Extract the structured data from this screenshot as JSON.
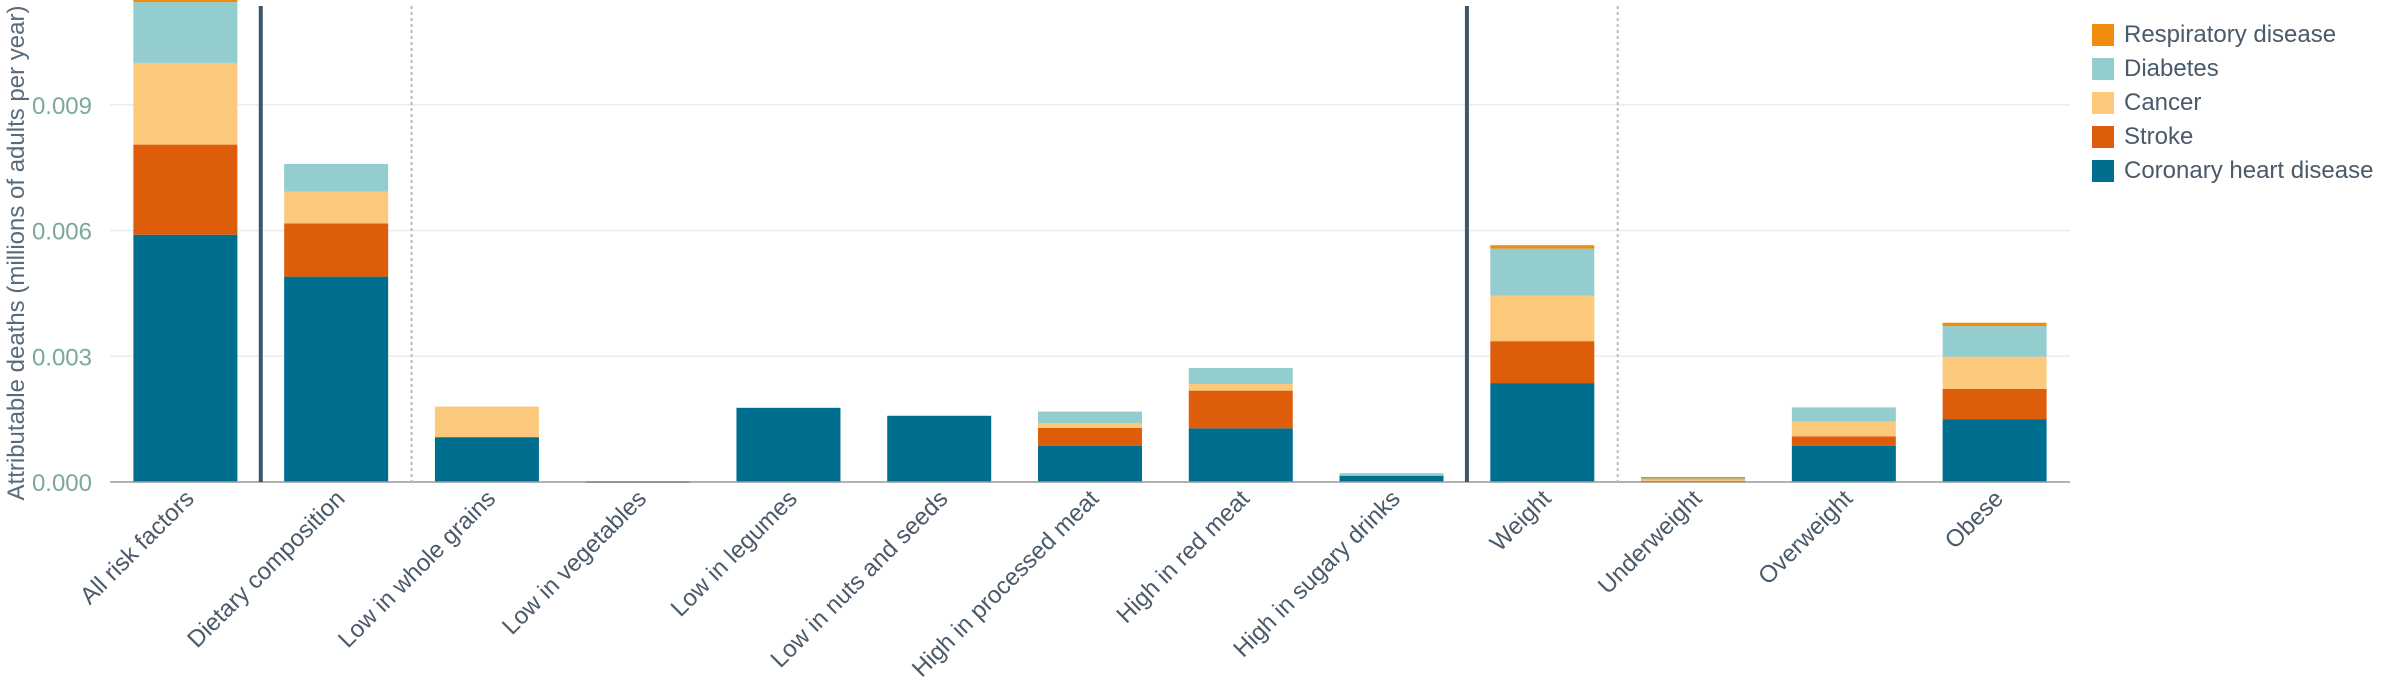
{
  "chart_data": {
    "type": "bar",
    "stacked": true,
    "ylabel": "Attributable deaths (millions of adults per year)",
    "ylim": [
      0,
      0.0115
    ],
    "yticks": [
      0.0,
      0.003,
      0.006,
      0.009
    ],
    "ytick_labels": [
      "0.000",
      "0.003",
      "0.006",
      "0.009"
    ],
    "grid": true,
    "legend_position": "top-right",
    "categories": [
      "All risk factors",
      "Dietary composition",
      "Low in whole grains",
      "Low in vegetables",
      "Low in legumes",
      "Low in nuts and seeds",
      "High in processed meat",
      "High in red meat",
      "High in sugary drinks",
      "Weight",
      "Underweight",
      "Overweight",
      "Obese"
    ],
    "group_separators": [
      {
        "after_index": 0,
        "style": "solid"
      },
      {
        "after_index": 1,
        "style": "dotted"
      },
      {
        "after_index": 8,
        "style": "solid"
      },
      {
        "after_index": 9,
        "style": "dotted"
      }
    ],
    "series": [
      {
        "name": "Coronary heart disease",
        "color": "#006e8f",
        "values": [
          0.0059,
          0.0049,
          0.00107,
          1.5e-05,
          0.00177,
          0.00158,
          0.00086,
          0.00128,
          0.00015,
          0.00236,
          4e-05,
          0.00086,
          0.0015
        ]
      },
      {
        "name": "Stroke",
        "color": "#de5d0b",
        "values": [
          0.00215,
          0.00127,
          0.0,
          5e-06,
          0.0,
          0.0,
          0.00043,
          0.0009,
          0.0,
          0.001,
          1e-05,
          0.00023,
          0.00072
        ]
      },
      {
        "name": "Cancer",
        "color": "#fcc97c",
        "values": [
          0.00195,
          0.00076,
          0.00073,
          0.0,
          0.0,
          0.0,
          0.00011,
          0.00016,
          0.0,
          0.00109,
          1e-05,
          0.00035,
          0.00077
        ]
      },
      {
        "name": "Diabetes",
        "color": "#94cdcd",
        "values": [
          0.00145,
          0.00066,
          0.0,
          0.0,
          0.0,
          0.0,
          0.00028,
          0.00038,
          6e-05,
          0.00112,
          3e-05,
          0.00034,
          0.00073
        ]
      },
      {
        "name": "Respiratory disease",
        "color": "#f28c0f",
        "values": [
          7e-05,
          0.0,
          0.0,
          0.0,
          0.0,
          0.0,
          0.0,
          0.0,
          0.0,
          8e-05,
          3e-05,
          0.0,
          8e-05
        ]
      }
    ]
  },
  "legend_order": [
    4,
    3,
    2,
    1,
    0
  ]
}
